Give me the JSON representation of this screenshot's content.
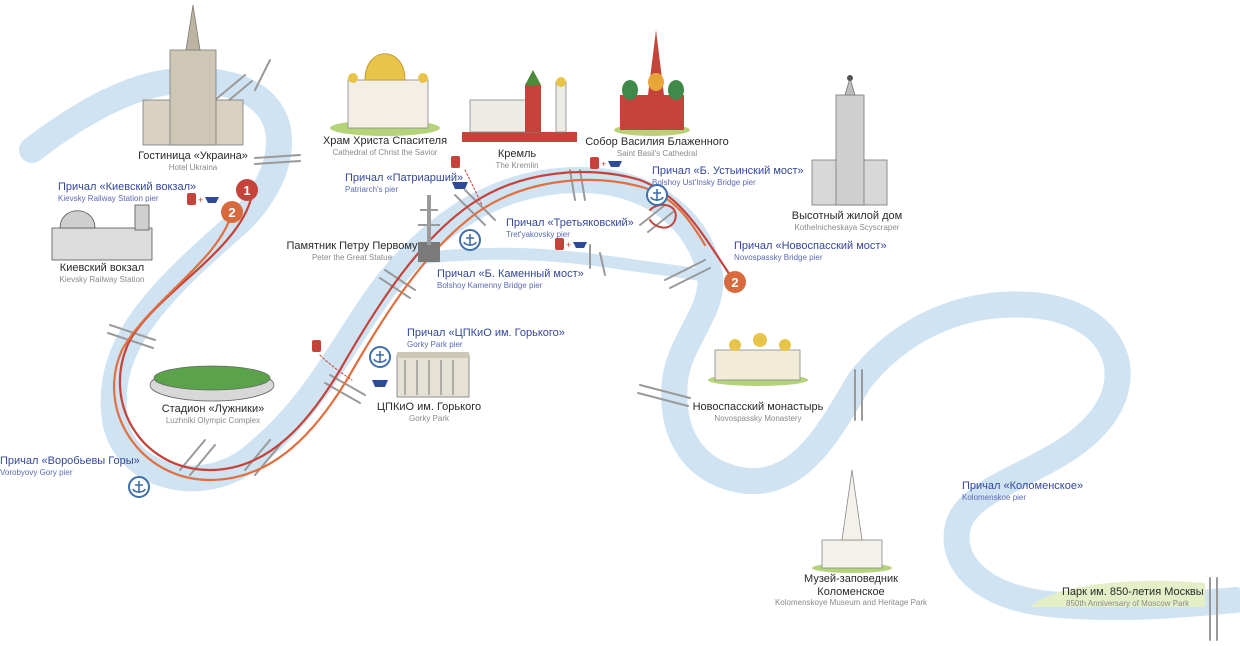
{
  "colors": {
    "river": "#cfe3f3",
    "route_outer": "#c4433a",
    "route_inner": "#e0703f",
    "bridge": "#9a9a9a",
    "pier_icon": "#3f6fa8",
    "boat_icon": "#2e4b9a",
    "bus_icon": "#c4433a",
    "pier_text": "#34479a",
    "badge_1": "#c4433a",
    "badge_2": "#d96a3e",
    "grass": "#b5d47a"
  },
  "landmarks": {
    "ukraina": {
      "ru": "Гостиница «Украина»",
      "en": "Hotel Ukraina"
    },
    "kievsky_station": {
      "ru": "Киевский вокзал",
      "en": "Kievsky Railway Station"
    },
    "cathedral_christ": {
      "ru": "Храм Христа Спасителя",
      "en": "Cathedral of Christ the Savior"
    },
    "kremlin": {
      "ru": "Кремль",
      "en": "The Kremlin"
    },
    "basil": {
      "ru": "Собор Василия Блаженного",
      "en": "Saint Basil's Cathedral"
    },
    "peter": {
      "ru": "Памятник Петру Первому",
      "en": "Peter the Great Statue"
    },
    "kotelnicheskaya": {
      "ru": "Высотный жилой дом",
      "en": "Kothelnicheskaya Scyscraper"
    },
    "luzhniki": {
      "ru": "Стадион «Лужники»",
      "en": "Luzhniki Olympic Complex"
    },
    "gorky_park": {
      "ru": "ЦПКиО им. Горького",
      "en": "Gorky Park"
    },
    "novospassky_monastery": {
      "ru": "Новоспасский монастырь",
      "en": "Novospassky Monastery"
    },
    "kolomenskoe_museum": {
      "ru1": "Музей-заповедник",
      "ru2": "Коломенское",
      "en": "Kolomenskoye Museum and Heritage Park"
    },
    "park850": {
      "ru": "Парк им. 850-летия Москвы",
      "en": "850th Anniversary of Moscow Park"
    }
  },
  "piers": {
    "kievsky": {
      "ru": "Причал «Киевский вокзал»",
      "en": "Kievsky Railway Station pier"
    },
    "patriarshy": {
      "ru": "Причал «Патриарший»",
      "en": "Patriarch's pier"
    },
    "tretyakovsky": {
      "ru": "Причал «Третьяковский»",
      "en": "Tret'yakovsky pier"
    },
    "ustinsky": {
      "ru": "Причал «Б. Устьинский мост»",
      "en": "Bolshoy Ust'Insky Bridge pier"
    },
    "novospassky_bridge": {
      "ru": "Причал «Новоспасский мост»",
      "en": "Novospassky Bridge pier"
    },
    "kamenny": {
      "ru": "Причал «Б. Каменный мост»",
      "en": "Bolshoy Kamenny Bridge pier"
    },
    "gorky": {
      "ru": "Причал «ЦПКиО им. Горького»",
      "en": "Gorky Park pier"
    },
    "vorobyovy": {
      "ru": "Причал «Воробьевы Горы»",
      "en": "Vorobyovy Gory pier"
    },
    "kolomenskoe": {
      "ru": "Причал «Коломенское»",
      "en": "Kolomenskoe pier"
    }
  },
  "badges": {
    "start": "1",
    "turn_a": "2",
    "turn_b": "2"
  },
  "icons": [
    "anchor-icon",
    "boat-icon",
    "bus-icon",
    "plus-icon"
  ]
}
